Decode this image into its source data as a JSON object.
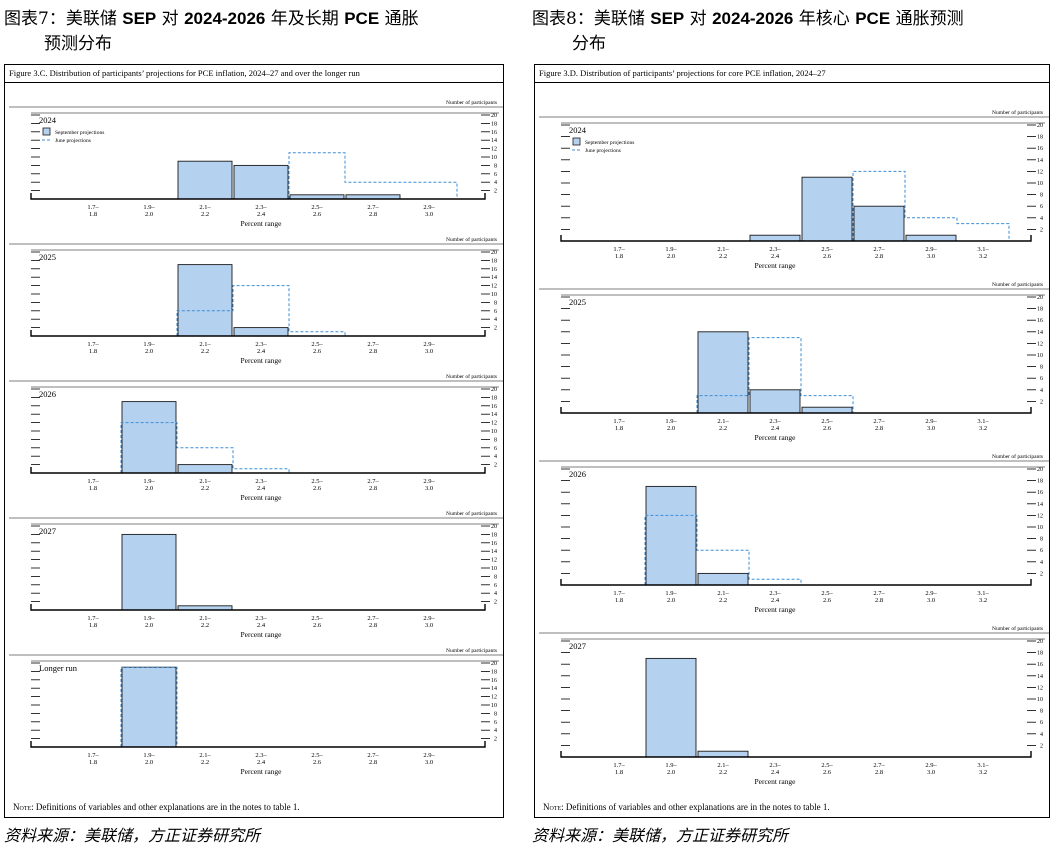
{
  "left": {
    "title_prefix": "图表7：美联储",
    "title_sep": "SEP",
    "title_mid": "对",
    "title_years": "2024-2026",
    "title_mid2": "年及长期",
    "title_pce": "PCE",
    "title_suffix": "通胀",
    "title_line2": "预测分布",
    "caption": "Figure 3.C. Distribution of participants’ projections for PCE inflation, 2024–27 and over the longer run",
    "note_prefix": "Note:",
    "note_text": " Definitions of variables and other explanations are in the notes to table 1.",
    "source": "资料来源：美联储，方正证券研究所"
  },
  "right": {
    "title_prefix": "图表8：美联储",
    "title_sep": "SEP",
    "title_mid": "对",
    "title_years": "2024-2026",
    "title_mid2": "年核心",
    "title_pce": "PCE",
    "title_suffix": "通胀预测",
    "title_line2": "分布",
    "caption": "Figure 3.D. Distribution of participants’ projections for core PCE inflation, 2024–27",
    "note_prefix": "Note:",
    "note_text": " Definitions of variables and other explanations are in the notes to table 1.",
    "source": "资料来源：美联储，方正证券研究所"
  },
  "colors": {
    "bar_fill": "#b4d1ef",
    "bar_stroke": "#1a1a1a",
    "june_dash": "#3d8ed6",
    "axis": "#000000"
  },
  "chart_data": [
    {
      "type": "bar",
      "id": "pce",
      "categories": [
        "1.7–\n1.8",
        "1.9–\n2.0",
        "2.1–\n2.2",
        "2.3–\n2.4",
        "2.5–\n2.6",
        "2.7–\n2.8",
        "2.9–\n3.0"
      ],
      "category_lines": [
        [
          "1.7–",
          "1.8"
        ],
        [
          "1.9–",
          "2.0"
        ],
        [
          "2.1–",
          "2.2"
        ],
        [
          "2.3–",
          "2.4"
        ],
        [
          "2.5–",
          "2.6"
        ],
        [
          "2.7–",
          "2.8"
        ],
        [
          "2.9–",
          "3.0"
        ]
      ],
      "xlabel": "Percent range",
      "ylabel": "Number of participants",
      "yticks": [
        2,
        4,
        6,
        8,
        10,
        12,
        14,
        16,
        18,
        20
      ],
      "ylim": [
        0,
        20
      ],
      "legend": {
        "september": "September projections",
        "june": "June projections"
      },
      "panels": [
        {
          "label": "2024",
          "show_legend": true,
          "september": [
            0,
            0,
            9,
            8,
            1,
            1,
            0
          ],
          "june": [
            0,
            0,
            0,
            0,
            11,
            4,
            4
          ]
        },
        {
          "label": "2025",
          "show_legend": false,
          "september": [
            0,
            0,
            17,
            2,
            0,
            0,
            0
          ],
          "june": [
            0,
            0,
            6,
            12,
            1,
            0,
            0
          ]
        },
        {
          "label": "2026",
          "show_legend": false,
          "september": [
            0,
            17,
            2,
            0,
            0,
            0,
            0
          ],
          "june": [
            0,
            12,
            6,
            1,
            0,
            0,
            0
          ]
        },
        {
          "label": "2027",
          "show_legend": false,
          "september": [
            0,
            18,
            1,
            0,
            0,
            0,
            0
          ],
          "june": [
            0,
            0,
            0,
            0,
            0,
            0,
            0
          ]
        },
        {
          "label": "Longer run",
          "show_legend": false,
          "september": [
            0,
            19,
            0,
            0,
            0,
            0,
            0
          ],
          "june": [
            0,
            19,
            0,
            0,
            0,
            0,
            0
          ]
        }
      ]
    },
    {
      "type": "bar",
      "id": "core",
      "categories": [
        "1.7–\n1.8",
        "1.9–\n2.0",
        "2.1–\n2.2",
        "2.3–\n2.4",
        "2.5–\n2.6",
        "2.7–\n2.8",
        "2.9–\n3.0",
        "3.1–\n3.2"
      ],
      "category_lines": [
        [
          "1.7–",
          "1.8"
        ],
        [
          "1.9–",
          "2.0"
        ],
        [
          "2.1–",
          "2.2"
        ],
        [
          "2.3–",
          "2.4"
        ],
        [
          "2.5–",
          "2.6"
        ],
        [
          "2.7–",
          "2.8"
        ],
        [
          "2.9–",
          "3.0"
        ],
        [
          "3.1–",
          "3.2"
        ]
      ],
      "xlabel": "Percent range",
      "ylabel": "Number of participants",
      "yticks": [
        2,
        4,
        6,
        8,
        10,
        12,
        14,
        16,
        18,
        20
      ],
      "ylim": [
        0,
        20
      ],
      "legend": {
        "september": "September projections",
        "june": "June projections"
      },
      "panels": [
        {
          "label": "2024",
          "show_legend": true,
          "september": [
            0,
            0,
            0,
            1,
            11,
            6,
            1,
            0
          ],
          "june": [
            0,
            0,
            0,
            0,
            0,
            12,
            4,
            3
          ]
        },
        {
          "label": "2025",
          "show_legend": false,
          "september": [
            0,
            0,
            14,
            4,
            1,
            0,
            0,
            0
          ],
          "june": [
            0,
            0,
            3,
            13,
            3,
            0,
            0,
            0
          ]
        },
        {
          "label": "2026",
          "show_legend": false,
          "september": [
            0,
            17,
            2,
            0,
            0,
            0,
            0,
            0
          ],
          "june": [
            0,
            12,
            6,
            1,
            0,
            0,
            0,
            0
          ]
        },
        {
          "label": "2027",
          "show_legend": false,
          "september": [
            0,
            17,
            1,
            0,
            0,
            0,
            0,
            0
          ],
          "june": [
            0,
            0,
            0,
            0,
            0,
            0,
            0,
            0
          ]
        }
      ]
    }
  ]
}
